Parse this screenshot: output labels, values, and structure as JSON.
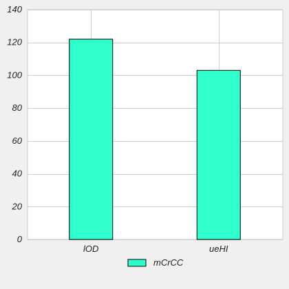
{
  "chart_data": {
    "type": "bar",
    "categories": [
      "lOD",
      "ueHI"
    ],
    "series": [
      {
        "name": "mCrCC",
        "values": [
          122,
          103
        ]
      }
    ],
    "title": "",
    "xlabel": "",
    "ylabel": "",
    "ylim": [
      0,
      140
    ],
    "yticks": [
      0,
      20,
      40,
      60,
      80,
      100,
      120,
      140
    ],
    "grid": true,
    "legend": "bottom-center",
    "colors": {
      "bar_fill": "#2effcc",
      "bar_stroke": "#000000",
      "grid": "#cccccc",
      "plot_background": "#ffffff",
      "page_background": "#f0f0f0"
    }
  }
}
